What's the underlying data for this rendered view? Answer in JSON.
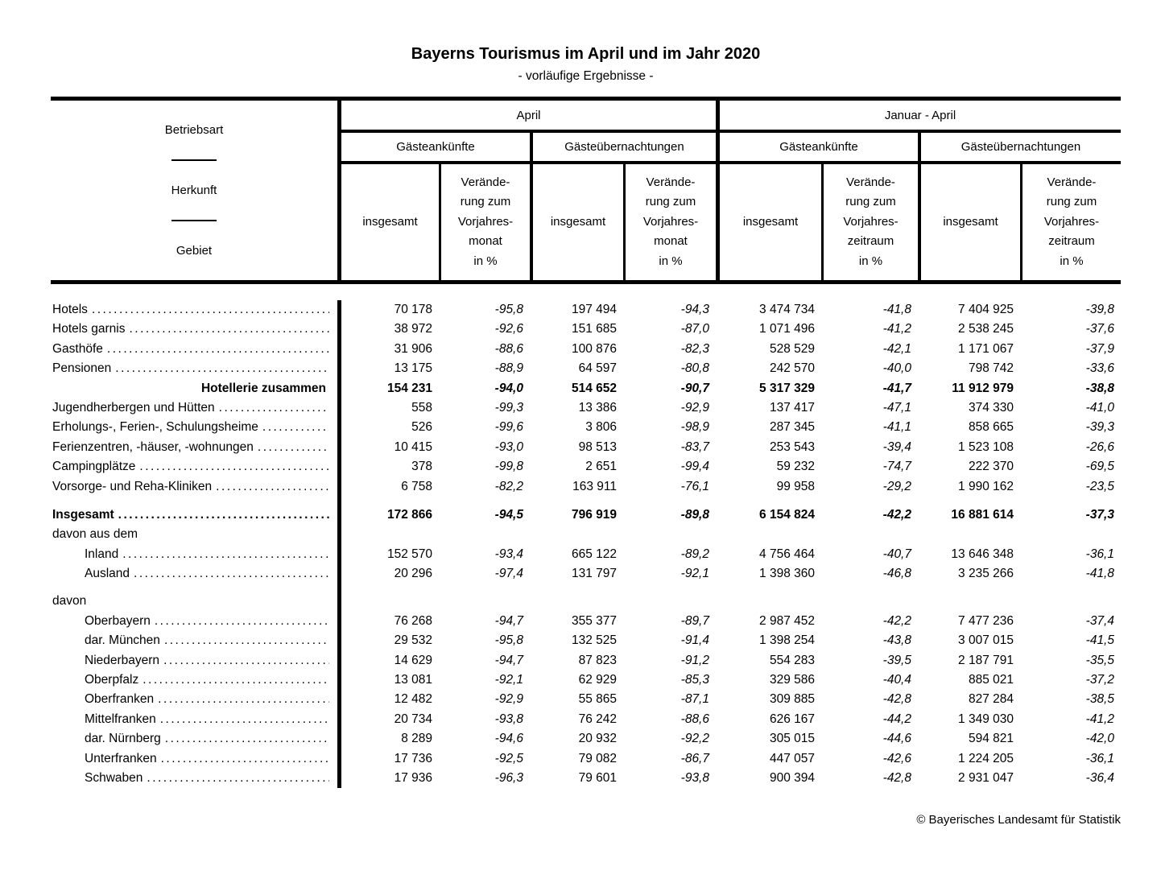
{
  "title": "Bayerns Tourismus im April und im Jahr 2020",
  "subtitle": "- vorläufige Ergebnisse -",
  "corner": [
    "Betriebsart",
    "Herkunft",
    "Gebiet"
  ],
  "header": {
    "groups": [
      {
        "title": "April",
        "sub": [
          {
            "title": "Gästeankünfte",
            "cols": [
              "insgesamt",
              "Verände-\nrung zum\nVorjahres-\nmonat\nin %"
            ]
          },
          {
            "title": "Gästeübernachtungen",
            "cols": [
              "insgesamt",
              "Verände-\nrung zum\nVorjahres-\nmonat\nin %"
            ]
          }
        ]
      },
      {
        "title": "Januar - April",
        "sub": [
          {
            "title": "Gästeankünfte",
            "cols": [
              "insgesamt",
              "Verände-\nrung zum\nVorjahres-\nzeitraum\nin %"
            ]
          },
          {
            "title": "Gästeübernachtungen",
            "cols": [
              "insgesamt",
              "Verände-\nrung zum\nVorjahres-\nzeitraum\nin %"
            ]
          }
        ]
      }
    ]
  },
  "table": {
    "rows": [
      {
        "label": "Hotels",
        "dots": true,
        "values": [
          "70 178",
          "-95,8",
          "197 494",
          "-94,3",
          "3 474 734",
          "-41,8",
          "7 404 925",
          "-39,8"
        ]
      },
      {
        "label": "Hotels garnis",
        "dots": true,
        "values": [
          "38 972",
          "-92,6",
          "151 685",
          "-87,0",
          "1 071 496",
          "-41,2",
          "2 538 245",
          "-37,6"
        ]
      },
      {
        "label": "Gasthöfe",
        "dots": true,
        "values": [
          "31 906",
          "-88,6",
          "100 876",
          "-82,3",
          "528 529",
          "-42,1",
          "1 171 067",
          "-37,9"
        ]
      },
      {
        "label": "Pensionen",
        "dots": true,
        "values": [
          "13 175",
          "-88,9",
          "64 597",
          "-80,8",
          "242 570",
          "-40,0",
          "798 742",
          "-33,6"
        ]
      },
      {
        "label": "Hotellerie zusammen",
        "bold": true,
        "align": "right",
        "values": [
          "154 231",
          "-94,0",
          "514 652",
          "-90,7",
          "5 317 329",
          "-41,7",
          "11 912 979",
          "-38,8"
        ]
      },
      {
        "label": "Jugendherbergen und Hütten",
        "dots": true,
        "values": [
          "558",
          "-99,3",
          "13 386",
          "-92,9",
          "137 417",
          "-47,1",
          "374 330",
          "-41,0"
        ]
      },
      {
        "label": "Erholungs-, Ferien-, Schulungsheime",
        "dots": true,
        "values": [
          "526",
          "-99,6",
          "3 806",
          "-98,9",
          "287 345",
          "-41,1",
          "858 665",
          "-39,3"
        ]
      },
      {
        "label": "Ferienzentren, -häuser, -wohnungen",
        "dots": true,
        "values": [
          "10 415",
          "-93,0",
          "98 513",
          "-83,7",
          "253 543",
          "-39,4",
          "1 523 108",
          "-26,6"
        ]
      },
      {
        "label": "Campingplätze",
        "dots": true,
        "values": [
          "378",
          "-99,8",
          "2 651",
          "-99,4",
          "59 232",
          "-74,7",
          "222 370",
          "-69,5"
        ]
      },
      {
        "label": "Vorsorge- und Reha-Kliniken",
        "dots": true,
        "values": [
          "6 758",
          "-82,2",
          "163 911",
          "-76,1",
          "99 958",
          "-29,2",
          "1 990 162",
          "-23,5"
        ]
      },
      {
        "type": "spacer",
        "h": 11
      },
      {
        "label": "Insgesamt",
        "bold": true,
        "dots": true,
        "values": [
          "172 866",
          "-94,5",
          "796 919",
          "-89,8",
          "6 154 824",
          "-42,2",
          "16 881 614",
          "-37,3"
        ]
      },
      {
        "label": "davon aus dem",
        "values": []
      },
      {
        "label": "Inland",
        "indent": 1,
        "dots": true,
        "values": [
          "152 570",
          "-93,4",
          "665 122",
          "-89,2",
          "4 756 464",
          "-40,7",
          "13 646 348",
          "-36,1"
        ]
      },
      {
        "label": "Ausland",
        "indent": 1,
        "dots": true,
        "values": [
          "20 296",
          "-97,4",
          "131 797",
          "-92,1",
          "1 398 360",
          "-46,8",
          "3 235 266",
          "-41,8"
        ]
      },
      {
        "type": "spacer",
        "h": 10
      },
      {
        "label": "davon",
        "values": []
      },
      {
        "label": "Oberbayern",
        "indent": 1,
        "dots": true,
        "values": [
          "76 268",
          "-94,7",
          "355 377",
          "-89,7",
          "2 987 452",
          "-42,2",
          "7 477 236",
          "-37,4"
        ]
      },
      {
        "label": "dar. München",
        "indent": 1,
        "dots": true,
        "values": [
          "29 532",
          "-95,8",
          "132 525",
          "-91,4",
          "1 398 254",
          "-43,8",
          "3 007 015",
          "-41,5"
        ]
      },
      {
        "label": "Niederbayern",
        "indent": 1,
        "dots": true,
        "values": [
          "14 629",
          "-94,7",
          "87 823",
          "-91,2",
          "554 283",
          "-39,5",
          "2 187 791",
          "-35,5"
        ]
      },
      {
        "label": "Oberpfalz",
        "indent": 1,
        "dots": true,
        "values": [
          "13 081",
          "-92,1",
          "62 929",
          "-85,3",
          "329 586",
          "-40,4",
          "885 021",
          "-37,2"
        ]
      },
      {
        "label": "Oberfranken",
        "indent": 1,
        "dots": true,
        "values": [
          "12 482",
          "-92,9",
          "55 865",
          "-87,1",
          "309 885",
          "-42,8",
          "827 284",
          "-38,5"
        ]
      },
      {
        "label": "Mittelfranken",
        "indent": 1,
        "dots": true,
        "values": [
          "20 734",
          "-93,8",
          "76 242",
          "-88,6",
          "626 167",
          "-44,2",
          "1 349 030",
          "-41,2"
        ]
      },
      {
        "label": "dar. Nürnberg",
        "indent": 1,
        "dots": true,
        "values": [
          "8 289",
          "-94,6",
          "20 932",
          "-92,2",
          "305 015",
          "-44,6",
          "594 821",
          "-42,0"
        ]
      },
      {
        "label": "Unterfranken",
        "indent": 1,
        "dots": true,
        "values": [
          "17 736",
          "-92,5",
          "79 082",
          "-86,7",
          "447 057",
          "-42,6",
          "1 224 205",
          "-36,1"
        ]
      },
      {
        "label": "Schwaben",
        "indent": 1,
        "dots": true,
        "values": [
          "17 936",
          "-96,3",
          "79 601",
          "-93,8",
          "900 394",
          "-42,8",
          "2 931 047",
          "-36,4"
        ]
      }
    ]
  },
  "footer": {
    "copyright": "© Bayerisches Landesamt für Statistik"
  }
}
